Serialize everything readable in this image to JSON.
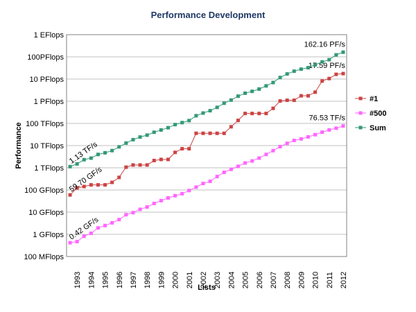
{
  "chart_data": {
    "type": "line",
    "title": "Performance Development",
    "y_label": "Performance",
    "x_label": "Lists",
    "log_y": true,
    "grid": true,
    "legend": "right",
    "categories": [
      null,
      "1993",
      null,
      "1994",
      null,
      "1995",
      null,
      "1996",
      null,
      "1997",
      null,
      "1998",
      null,
      "1999",
      null,
      "2000",
      null,
      "2001",
      null,
      "2002",
      null,
      "2003",
      null,
      "2004",
      null,
      "2005",
      null,
      "2006",
      null,
      "2007",
      null,
      "2008",
      null,
      "2009",
      null,
      "2010",
      null,
      "2011",
      null,
      "2012"
    ],
    "ylim": [
      0.1,
      1000000000
    ],
    "yticks": [
      {
        "value": 0.1,
        "label": "100 MFlops"
      },
      {
        "value": 1,
        "label": "1 GFlops"
      },
      {
        "value": 10,
        "label": "10 GFlops"
      },
      {
        "value": 100,
        "label": "100 GFlops"
      },
      {
        "value": 1000,
        "label": "1 TFlops"
      },
      {
        "value": 10000,
        "label": "10 TFlops"
      },
      {
        "value": 100000,
        "label": "100 TFlops"
      },
      {
        "value": 1000000,
        "label": "1 PFlops"
      },
      {
        "value": 10000000,
        "label": "10 PFlops"
      },
      {
        "value": 100000000,
        "label": "100PFlops"
      },
      {
        "value": 1000000000,
        "label": "1 EFlops"
      }
    ],
    "series": [
      {
        "name": "#1",
        "color": "#cc4444",
        "values": [
          59.7,
          124,
          143.4,
          170,
          170,
          170,
          220.4,
          368.2,
          1068,
          1338,
          1338,
          1338,
          2121,
          2379,
          2379,
          4938,
          7226,
          7226,
          35860,
          35860,
          35860,
          35860,
          35860,
          70720,
          136800,
          280600,
          280600,
          280600,
          280600,
          478200,
          1026000,
          1105000,
          1105000,
          1759000,
          1759000,
          2566000,
          8162000,
          10510000,
          16324750,
          17590000
        ],
        "value_labels": [
          "59.70 GF/s",
          null,
          null,
          null,
          null,
          null,
          null,
          null,
          null,
          null,
          null,
          null,
          null,
          null,
          null,
          null,
          null,
          null,
          null,
          null,
          null,
          null,
          null,
          null,
          null,
          null,
          null,
          null,
          null,
          null,
          null,
          null,
          null,
          null,
          null,
          null,
          null,
          null,
          null,
          "17.59 PF/s"
        ]
      },
      {
        "name": "#500",
        "color": "#ff66ff",
        "values": [
          0.42,
          0.472,
          0.822,
          1.114,
          1.955,
          2.489,
          3.306,
          4.62,
          7.67,
          9.51,
          13.39,
          17.1,
          24.7,
          33.1,
          43.8,
          55.1,
          67.78,
          94.3,
          134.3,
          195.8,
          245.1,
          403.4,
          624,
          850.6,
          1166,
          1646,
          2026,
          2737,
          4005,
          5929,
          9000,
          12640,
          17100,
          20050,
          24670,
          31120,
          40190,
          50940,
          60820,
          76530
        ],
        "value_labels": [
          "0.42 GF/s",
          null,
          null,
          null,
          null,
          null,
          null,
          null,
          null,
          null,
          null,
          null,
          null,
          null,
          null,
          null,
          null,
          null,
          null,
          null,
          null,
          null,
          null,
          null,
          null,
          null,
          null,
          null,
          null,
          null,
          null,
          null,
          null,
          null,
          null,
          null,
          null,
          null,
          null,
          "76.53 TF/s"
        ]
      },
      {
        "name": "Sum",
        "color": "#339977",
        "values": [
          1128,
          1493,
          2317,
          2730,
          3994,
          4747,
          5955,
          8796,
          12960,
          18490,
          24340,
          29630,
          39990,
          50630,
          64060,
          88370,
          108700,
          134400,
          222100,
          293300,
          374400,
          528200,
          813100,
          1127000,
          1690000,
          2300000,
          2790000,
          3530000,
          4920000,
          6970000,
          11700000,
          16950000,
          22600000,
          27900000,
          32400000,
          43700000,
          58900000,
          74200000,
          123000000,
          162160000
        ],
        "value_labels": [
          "1.13 TF/s",
          null,
          null,
          null,
          null,
          null,
          null,
          null,
          null,
          null,
          null,
          null,
          null,
          null,
          null,
          null,
          null,
          null,
          null,
          null,
          null,
          null,
          null,
          null,
          null,
          null,
          null,
          null,
          null,
          null,
          null,
          null,
          null,
          null,
          null,
          null,
          null,
          null,
          null,
          "162.16 PF/s"
        ]
      }
    ]
  }
}
